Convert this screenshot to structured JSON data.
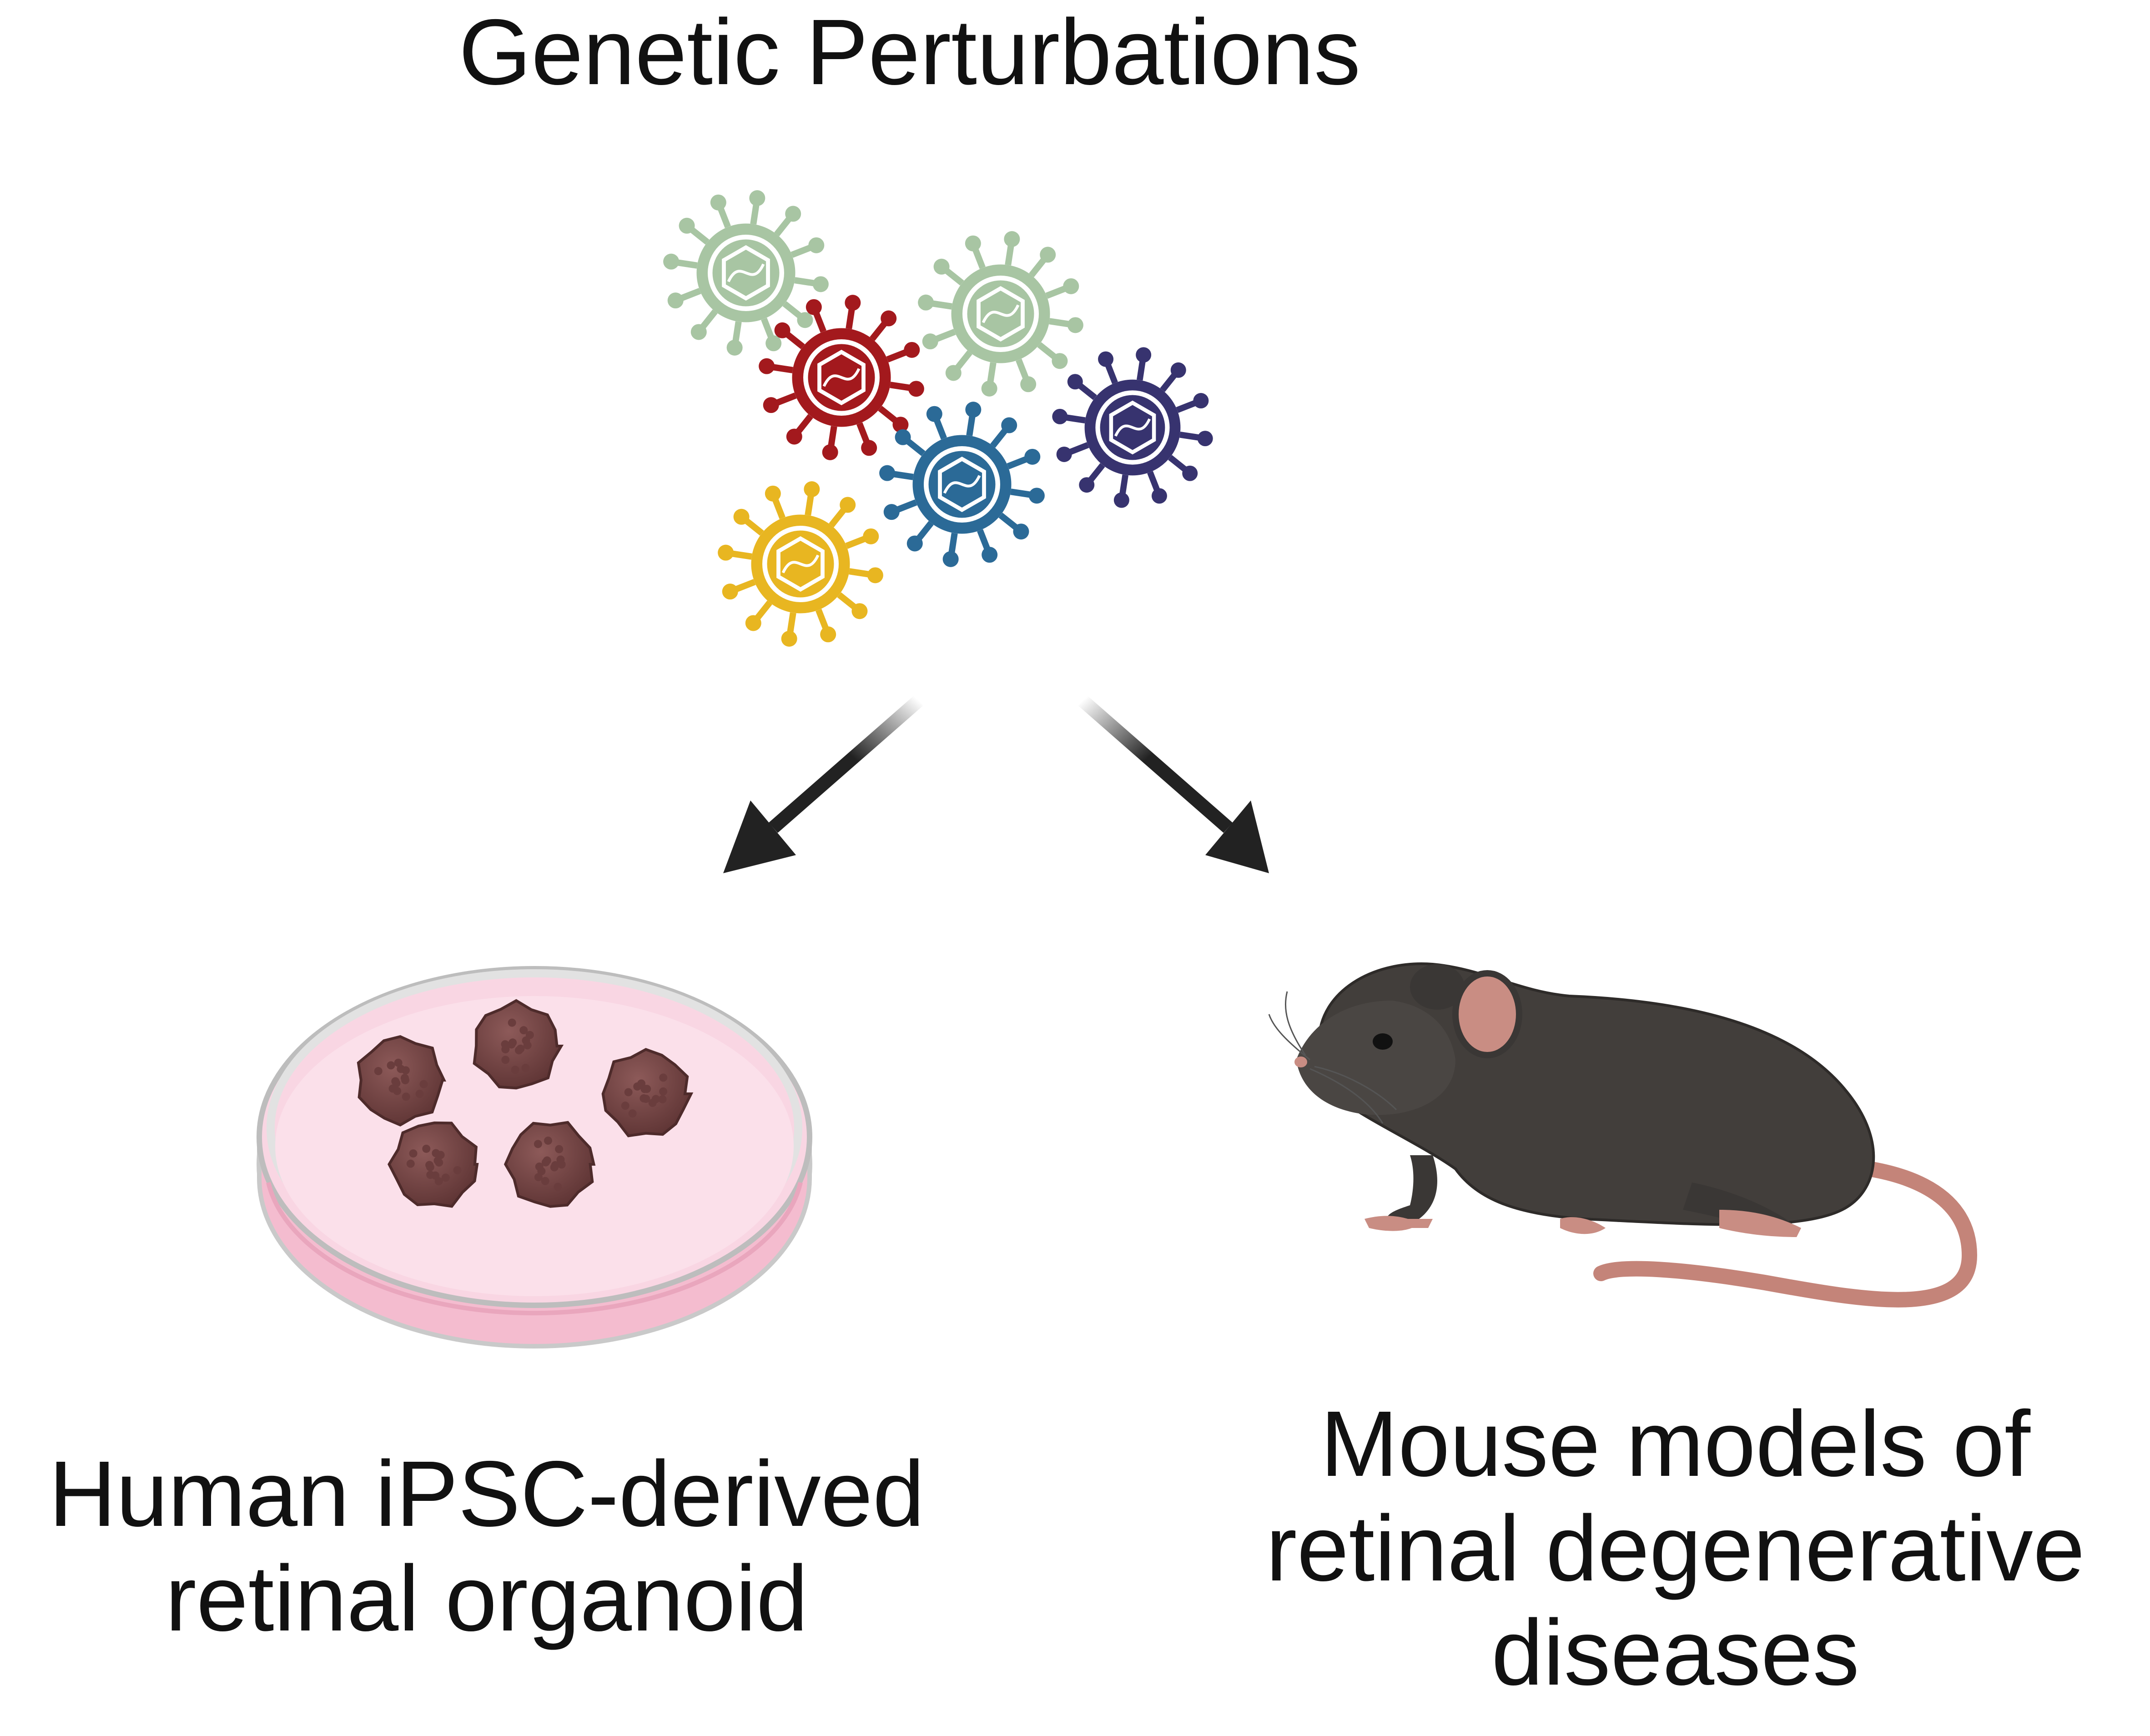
{
  "title": "Genetic Perturbations",
  "left_label": [
    "Human iPSC-derived",
    "retinal organoid"
  ],
  "right_label": [
    "Mouse models of",
    "retinal degenerative",
    "diseases"
  ],
  "colors": {
    "virus_green": "#a8c5a3",
    "virus_red": "#a3191d",
    "virus_blue": "#2b6a97",
    "virus_purple": "#37336f",
    "virus_yellow": "#e8b621",
    "organoid": "#7a4a4a",
    "dish_medium": "#f7cfdd",
    "mouse_body": "#3f3c3a",
    "mouse_pink": "#c98d83",
    "arrow": "#222222"
  },
  "icons": [
    "virus-icon",
    "petri-dish-icon",
    "organoid-icon",
    "mouse-icon",
    "arrow-icon"
  ]
}
